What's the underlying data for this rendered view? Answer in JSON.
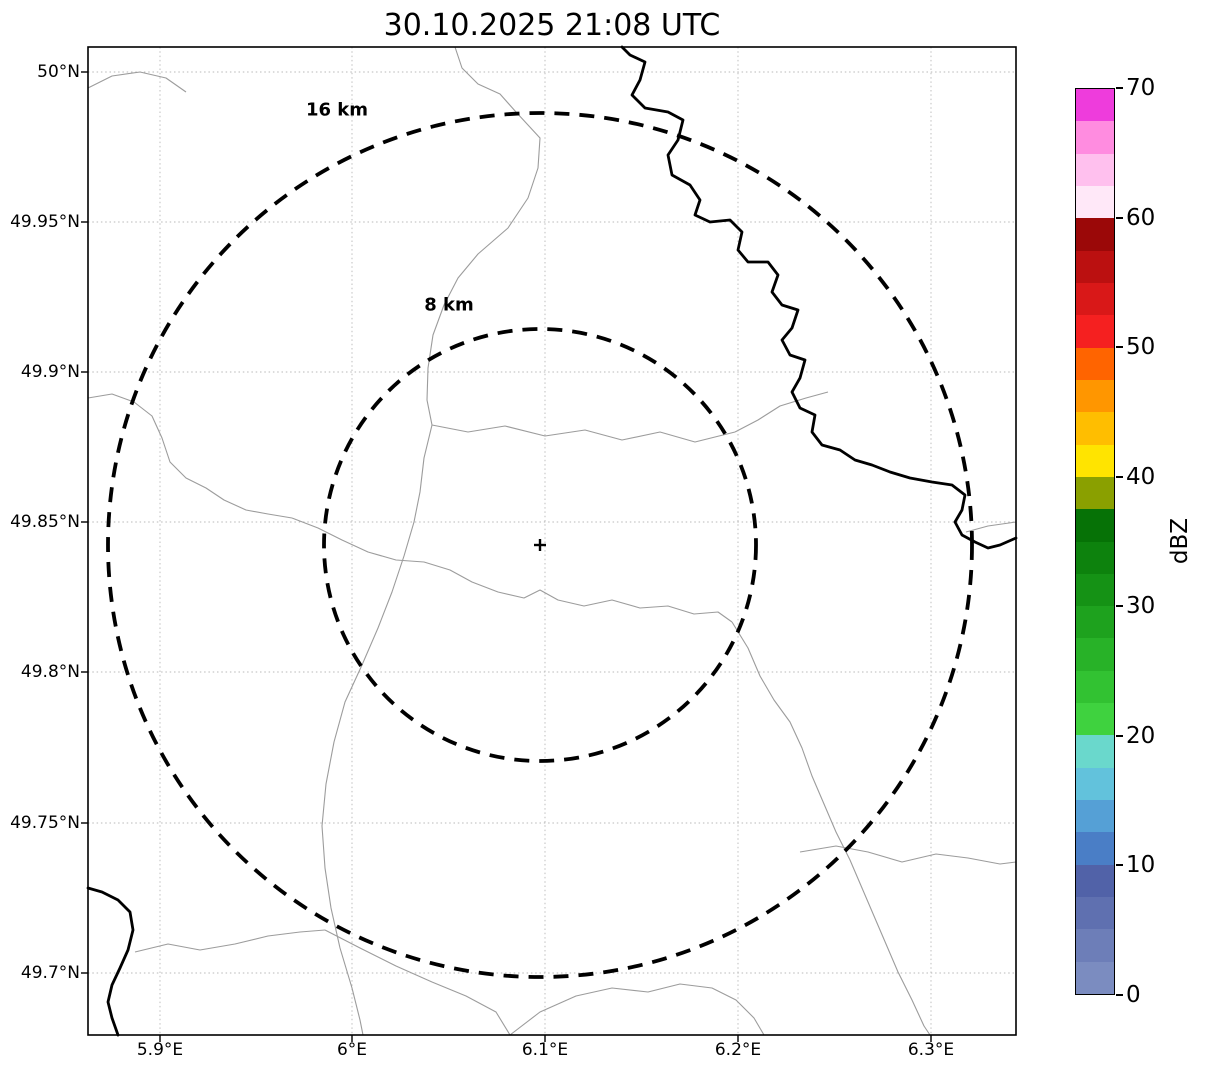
{
  "title": "30.10.2025 21:08 UTC",
  "map": {
    "range_rings": [
      {
        "label": "16 km"
      },
      {
        "label": "8 km"
      }
    ],
    "center_marker": "+",
    "x_axis": {
      "ticks": [
        "5.9°E",
        "6°E",
        "6.1°E",
        "6.2°E",
        "6.3°E"
      ]
    },
    "y_axis": {
      "ticks": [
        "50°N",
        "49.95°N",
        "49.9°N",
        "49.85°N",
        "49.8°N",
        "49.75°N",
        "49.7°N"
      ]
    }
  },
  "colorbar": {
    "label": "dBZ",
    "ticks": [
      "0",
      "10",
      "20",
      "30",
      "40",
      "50",
      "60",
      "70"
    ],
    "tick_values": [
      0,
      10,
      20,
      30,
      40,
      50,
      60,
      70
    ],
    "min": 0,
    "max": 70,
    "step": 2.5,
    "colors": [
      "#7b8cc0",
      "#6d7eb8",
      "#5f70b0",
      "#5162a8",
      "#4a7ec6",
      "#55a0d6",
      "#62c2dc",
      "#6ad8cc",
      "#3fd23f",
      "#32c232",
      "#28b228",
      "#1ea21e",
      "#159215",
      "#0d820d",
      "#067206",
      "#8aa000",
      "#ffe400",
      "#ffbe00",
      "#ff9600",
      "#ff6400",
      "#f52020",
      "#d91818",
      "#bb1010",
      "#9b0808",
      "#ffe8f8",
      "#ffc0ee",
      "#ff8ce0",
      "#ee3cdc"
    ]
  },
  "colors": {
    "background": "#ffffff",
    "frame": "#000000",
    "range_ring": "#000000",
    "river": "#000000",
    "admin_border": "#9c9c9c",
    "grid": "#b8b8b8",
    "text": "#000000"
  }
}
